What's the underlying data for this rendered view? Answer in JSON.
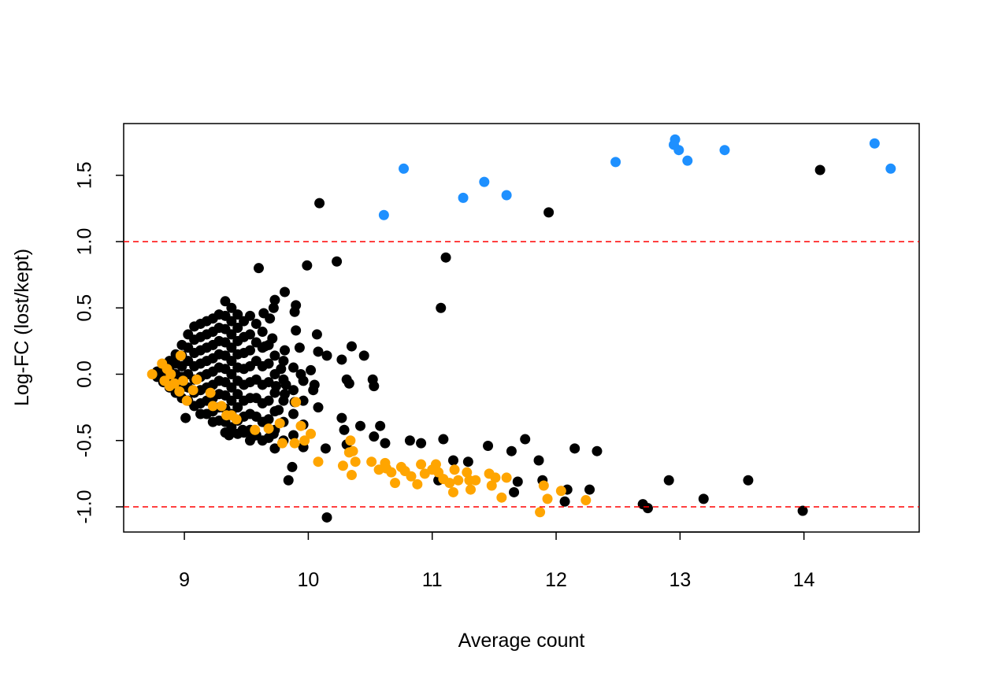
{
  "chart_data": {
    "type": "scatter",
    "xlabel": "Average count",
    "ylabel": "Log-FC (lost/kept)",
    "xlim": [
      8.51,
      14.93
    ],
    "ylim": [
      -1.19,
      1.89
    ],
    "xticks": [
      9,
      10,
      11,
      12,
      13,
      14
    ],
    "yticks": [
      {
        "value": -1,
        "label": "-1.0"
      },
      -0.5,
      {
        "value": 0,
        "label": "0.0"
      },
      0.5,
      {
        "value": 1,
        "label": "1.0"
      },
      1.5
    ],
    "hlines": {
      "values": [
        1,
        -1
      ],
      "color": "#ff0000"
    },
    "series": [
      {
        "color": "#000000",
        "x": [
          10.09,
          11.94,
          14.13,
          11.11,
          10.23,
          9.99,
          9.6,
          11.07,
          10.15,
          13.99,
          13.19,
          13.55,
          12.91,
          12.7,
          12.74,
          12.27,
          12.07,
          12.09,
          12.15,
          12.33,
          11.86,
          11.89,
          11.75,
          11.64,
          11.69,
          11.66,
          11.45,
          11.29,
          11.17,
          11.09,
          11.05,
          10.82,
          10.91,
          10.58,
          10.62,
          10.53,
          10.52,
          10.53,
          10.45,
          10.35,
          10.27,
          10.33,
          10.31,
          10.07,
          10.08,
          10.15,
          10.02,
          9.94,
          10.05,
          10.08,
          10.04,
          10.27,
          10.31,
          10.42,
          10.29,
          10.14,
          9.84,
          9.87,
          9.9,
          9.89,
          9.9,
          9.81,
          9.73,
          9.72,
          9.69,
          9.64,
          9.65,
          9.71,
          9.81,
          9.93,
          9.78,
          9.74,
          9.82,
          9.81,
          9.89,
          9.76,
          9.64,
          9.72,
          9.55,
          9.47,
          9.36,
          9.01,
          8.78,
          8.78,
          8.83,
          8.83,
          8.83,
          8.88,
          8.88,
          8.88,
          8.88,
          8.93,
          8.93,
          8.93,
          8.93,
          8.93,
          8.98,
          8.98,
          8.98,
          8.98,
          8.98,
          8.98,
          9.03,
          9.03,
          9.03,
          9.03,
          9.03,
          9.03,
          9.08,
          9.08,
          9.08,
          9.08,
          9.08,
          9.08,
          9.08,
          9.13,
          9.13,
          9.13,
          9.13,
          9.13,
          9.13,
          9.13,
          9.13,
          9.18,
          9.18,
          9.18,
          9.18,
          9.18,
          9.18,
          9.18,
          9.18,
          9.23,
          9.23,
          9.23,
          9.23,
          9.23,
          9.23,
          9.23,
          9.23,
          9.23,
          9.28,
          9.28,
          9.28,
          9.28,
          9.28,
          9.28,
          9.28,
          9.28,
          9.28,
          9.33,
          9.33,
          9.33,
          9.33,
          9.33,
          9.33,
          9.33,
          9.33,
          9.33,
          9.33,
          9.33,
          9.38,
          9.38,
          9.38,
          9.38,
          9.38,
          9.38,
          9.38,
          9.38,
          9.38,
          9.38,
          9.43,
          9.43,
          9.43,
          9.43,
          9.43,
          9.43,
          9.43,
          9.43,
          9.43,
          9.43,
          9.48,
          9.48,
          9.48,
          9.48,
          9.48,
          9.48,
          9.48,
          9.48,
          9.53,
          9.53,
          9.53,
          9.53,
          9.53,
          9.53,
          9.53,
          9.53,
          9.53,
          9.58,
          9.58,
          9.58,
          9.58,
          9.58,
          9.58,
          9.58,
          9.63,
          9.63,
          9.63,
          9.63,
          9.63,
          9.63,
          9.63,
          9.68,
          9.68,
          9.68,
          9.68,
          9.68,
          9.68,
          9.73,
          9.73,
          9.73,
          9.73,
          9.73,
          9.73,
          9.8,
          9.8,
          9.8,
          9.8,
          9.8,
          9.88,
          9.88,
          9.88,
          9.88,
          9.96,
          9.96,
          9.96,
          9.96
        ],
        "y": [
          1.29,
          1.22,
          1.54,
          0.88,
          0.85,
          0.82,
          0.8,
          0.5,
          -1.08,
          -1.03,
          -0.94,
          -0.8,
          -0.8,
          -0.98,
          -1.01,
          -0.87,
          -0.96,
          -0.87,
          -0.56,
          -0.58,
          -0.65,
          -0.8,
          -0.49,
          -0.58,
          -0.81,
          -0.89,
          -0.54,
          -0.66,
          -0.65,
          -0.49,
          -0.8,
          -0.5,
          -0.52,
          -0.39,
          -0.52,
          -0.47,
          -0.04,
          -0.09,
          0.14,
          0.21,
          0.11,
          -0.07,
          -0.04,
          0.3,
          0.17,
          0.14,
          0.03,
          0,
          -0.08,
          -0.25,
          -0.12,
          -0.33,
          -0.53,
          -0.39,
          -0.42,
          -0.56,
          -0.8,
          -0.7,
          0.33,
          0.47,
          0.52,
          0.62,
          0.56,
          0.5,
          0.42,
          0.46,
          0.21,
          0.27,
          0.18,
          0.2,
          0.04,
          -0.09,
          -0.08,
          -0.15,
          -0.21,
          -0.27,
          -0.36,
          -0.45,
          -0.47,
          -0.42,
          -0.46,
          -0.33,
          0.02,
          -0.02,
          0.07,
          0,
          -0.06,
          0.1,
          0.03,
          -0.04,
          -0.1,
          0.15,
          0.08,
          0,
          -0.08,
          -0.14,
          0.22,
          0.14,
          0.06,
          -0.02,
          -0.1,
          -0.18,
          0.3,
          0.2,
          0.1,
          0,
          -0.1,
          -0.2,
          0.36,
          0.26,
          0.16,
          0.06,
          -0.04,
          -0.14,
          -0.24,
          0.38,
          0.28,
          0.18,
          0.08,
          -0.02,
          -0.12,
          -0.22,
          -0.3,
          0.4,
          0.3,
          0.2,
          0.1,
          0,
          -0.1,
          -0.2,
          -0.3,
          0.42,
          0.32,
          0.22,
          0.12,
          0.02,
          -0.08,
          -0.18,
          -0.28,
          -0.36,
          0.45,
          0.35,
          0.25,
          0.15,
          0.05,
          -0.05,
          -0.15,
          -0.25,
          -0.35,
          0.55,
          0.44,
          0.34,
          0.24,
          0.14,
          0.04,
          -0.06,
          -0.16,
          -0.26,
          -0.36,
          -0.44,
          0.5,
          0.4,
          0.3,
          0.2,
          0.1,
          0,
          -0.1,
          -0.2,
          -0.3,
          -0.4,
          0.45,
          0.35,
          0.25,
          0.15,
          0.05,
          -0.05,
          -0.15,
          -0.25,
          -0.35,
          -0.45,
          0.4,
          0.28,
          0.16,
          0.04,
          -0.08,
          -0.2,
          -0.32,
          -0.44,
          0.44,
          0.3,
          0.18,
          0.06,
          -0.06,
          -0.18,
          -0.3,
          -0.42,
          -0.5,
          0.38,
          0.24,
          0.1,
          -0.04,
          -0.18,
          -0.32,
          -0.46,
          0.32,
          0.2,
          0.06,
          -0.08,
          -0.22,
          -0.36,
          -0.5,
          0.22,
          0.08,
          -0.06,
          -0.2,
          -0.34,
          -0.48,
          0.14,
          0,
          -0.14,
          -0.28,
          -0.42,
          -0.56,
          0.1,
          -0.04,
          -0.2,
          -0.36,
          -0.5,
          0.05,
          -0.12,
          -0.3,
          -0.46,
          -0.05,
          -0.2,
          -0.38,
          -0.55
        ]
      },
      {
        "color": "#ffa500",
        "x": [
          8.74,
          8.82,
          8.86,
          8.89,
          8.84,
          8.88,
          8.92,
          8.97,
          8.96,
          8.99,
          9.02,
          9.07,
          9.1,
          9.21,
          9.23,
          9.3,
          9.34,
          9.38,
          9.42,
          9.57,
          9.68,
          9.77,
          9.79,
          9.9,
          9.89,
          9.94,
          9.97,
          10.02,
          10.08,
          10.28,
          10.34,
          10.33,
          10.35,
          10.38,
          10.36,
          10.51,
          10.57,
          10.62,
          10.63,
          10.67,
          10.7,
          10.75,
          10.78,
          10.83,
          10.88,
          10.91,
          10.94,
          11.0,
          11.03,
          11.05,
          11.09,
          11.14,
          11.17,
          11.21,
          11.28,
          11.3,
          11.31,
          11.35,
          11.46,
          11.48,
          11.51,
          11.56,
          11.6,
          11.9,
          11.93,
          12.04,
          12.24,
          11.87,
          11.18
        ],
        "y": [
          0,
          0.08,
          0.04,
          0,
          -0.05,
          -0.09,
          -0.07,
          0.14,
          -0.13,
          -0.05,
          -0.2,
          -0.12,
          -0.04,
          -0.14,
          -0.24,
          -0.24,
          -0.31,
          -0.31,
          -0.34,
          -0.42,
          -0.41,
          -0.37,
          -0.52,
          -0.21,
          -0.52,
          -0.39,
          -0.5,
          -0.45,
          -0.66,
          -0.69,
          -0.5,
          -0.59,
          -0.76,
          -0.66,
          -0.58,
          -0.66,
          -0.72,
          -0.67,
          -0.71,
          -0.74,
          -0.82,
          -0.7,
          -0.73,
          -0.77,
          -0.83,
          -0.68,
          -0.75,
          -0.72,
          -0.68,
          -0.74,
          -0.79,
          -0.82,
          -0.89,
          -0.8,
          -0.74,
          -0.8,
          -0.87,
          -0.8,
          -0.75,
          -0.84,
          -0.78,
          -0.93,
          -0.78,
          -0.84,
          -0.94,
          -0.88,
          -0.95,
          -1.04,
          -0.72
        ]
      },
      {
        "color": "#1e90ff",
        "x": [
          10.61,
          10.77,
          11.25,
          11.42,
          11.6,
          12.48,
          12.96,
          12.95,
          12.99,
          13.06,
          13.36,
          14.57,
          14.7
        ],
        "y": [
          1.2,
          1.55,
          1.33,
          1.45,
          1.35,
          1.6,
          1.77,
          1.73,
          1.69,
          1.61,
          1.69,
          1.74,
          1.55
        ]
      }
    ]
  }
}
